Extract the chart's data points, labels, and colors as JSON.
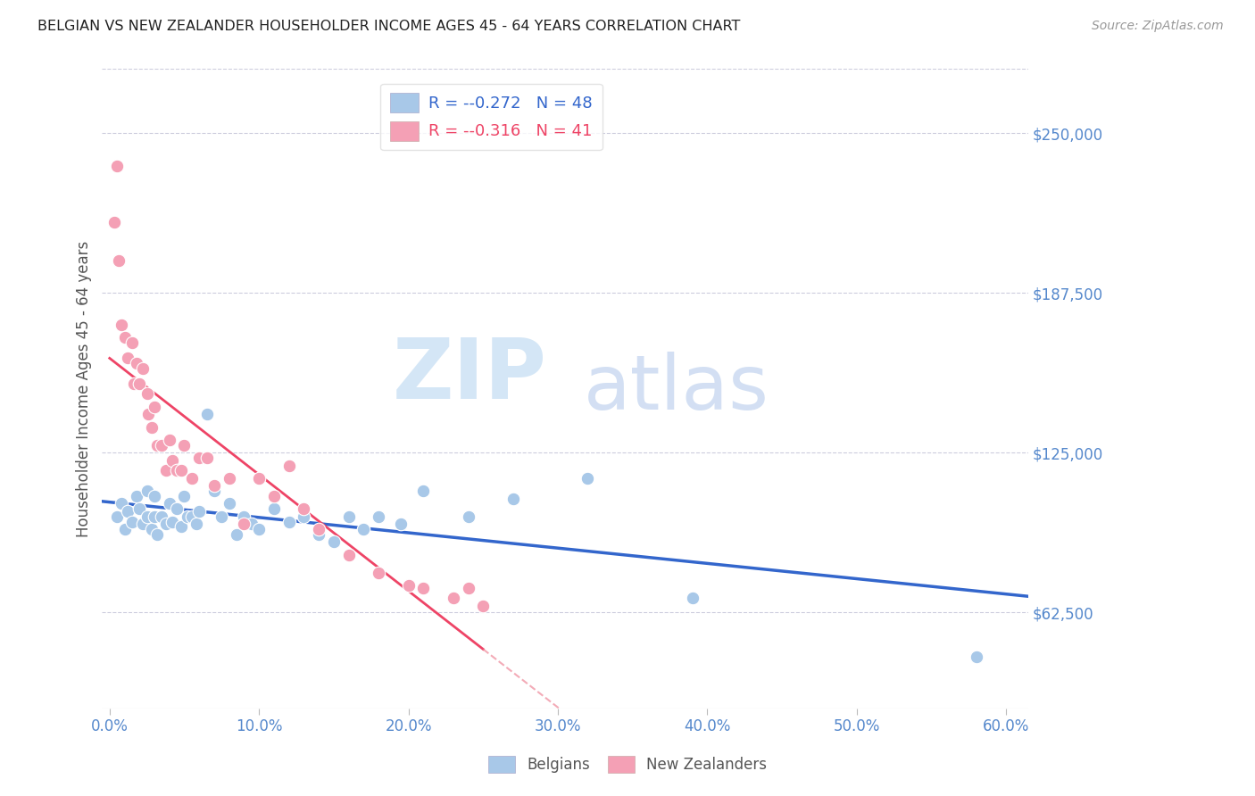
{
  "title": "BELGIAN VS NEW ZEALANDER HOUSEHOLDER INCOME AGES 45 - 64 YEARS CORRELATION CHART",
  "source": "Source: ZipAtlas.com",
  "ylabel": "Householder Income Ages 45 - 64 years",
  "legend_blue_r": "-0.272",
  "legend_blue_n": "48",
  "legend_pink_r": "-0.316",
  "legend_pink_n": "41",
  "ytick_labels": [
    "$62,500",
    "$125,000",
    "$187,500",
    "$250,000"
  ],
  "ytick_values": [
    62500,
    125000,
    187500,
    250000
  ],
  "xtick_labels": [
    "0.0%",
    "10.0%",
    "20.0%",
    "30.0%",
    "40.0%",
    "50.0%",
    "60.0%"
  ],
  "xtick_values": [
    0.0,
    0.1,
    0.2,
    0.3,
    0.4,
    0.5,
    0.6
  ],
  "xlim": [
    -0.005,
    0.615
  ],
  "ylim": [
    25000,
    275000
  ],
  "blue_color": "#A8C8E8",
  "pink_color": "#F4A0B5",
  "trendline_blue_color": "#3366CC",
  "trendline_pink_solid_color": "#EE4466",
  "trendline_pink_dash_color": "#EE8899",
  "background": "#FFFFFF",
  "watermark_zip": "ZIP",
  "watermark_atlas": "atlas",
  "blue_x": [
    0.005,
    0.008,
    0.01,
    0.012,
    0.015,
    0.018,
    0.02,
    0.022,
    0.025,
    0.025,
    0.028,
    0.03,
    0.03,
    0.032,
    0.035,
    0.038,
    0.04,
    0.042,
    0.045,
    0.048,
    0.05,
    0.052,
    0.055,
    0.058,
    0.06,
    0.065,
    0.07,
    0.075,
    0.08,
    0.085,
    0.09,
    0.095,
    0.1,
    0.11,
    0.12,
    0.13,
    0.14,
    0.15,
    0.16,
    0.17,
    0.18,
    0.195,
    0.21,
    0.24,
    0.27,
    0.32,
    0.39,
    0.58
  ],
  "blue_y": [
    100000,
    105000,
    95000,
    102000,
    98000,
    108000,
    103000,
    97000,
    110000,
    100000,
    95000,
    108000,
    100000,
    93000,
    100000,
    97000,
    105000,
    98000,
    103000,
    96000,
    108000,
    100000,
    100000,
    97000,
    102000,
    140000,
    110000,
    100000,
    105000,
    93000,
    100000,
    97000,
    95000,
    103000,
    98000,
    100000,
    93000,
    90000,
    100000,
    95000,
    100000,
    97000,
    110000,
    100000,
    107000,
    115000,
    68000,
    45000
  ],
  "pink_x": [
    0.003,
    0.005,
    0.006,
    0.008,
    0.01,
    0.012,
    0.015,
    0.016,
    0.018,
    0.02,
    0.022,
    0.025,
    0.026,
    0.028,
    0.03,
    0.032,
    0.035,
    0.038,
    0.04,
    0.042,
    0.045,
    0.048,
    0.05,
    0.055,
    0.06,
    0.065,
    0.07,
    0.08,
    0.09,
    0.1,
    0.11,
    0.12,
    0.13,
    0.14,
    0.16,
    0.18,
    0.2,
    0.21,
    0.23,
    0.24,
    0.25
  ],
  "pink_y": [
    215000,
    237000,
    200000,
    175000,
    170000,
    162000,
    168000,
    152000,
    160000,
    152000,
    158000,
    148000,
    140000,
    135000,
    143000,
    128000,
    128000,
    118000,
    130000,
    122000,
    118000,
    118000,
    128000,
    115000,
    123000,
    123000,
    112000,
    115000,
    97000,
    115000,
    108000,
    120000,
    103000,
    95000,
    85000,
    78000,
    73000,
    72000,
    68000,
    72000,
    65000
  ],
  "pink_trend_solid_xlim": [
    0.0,
    0.25
  ],
  "pink_trend_dash_xlim": [
    0.25,
    0.45
  ]
}
